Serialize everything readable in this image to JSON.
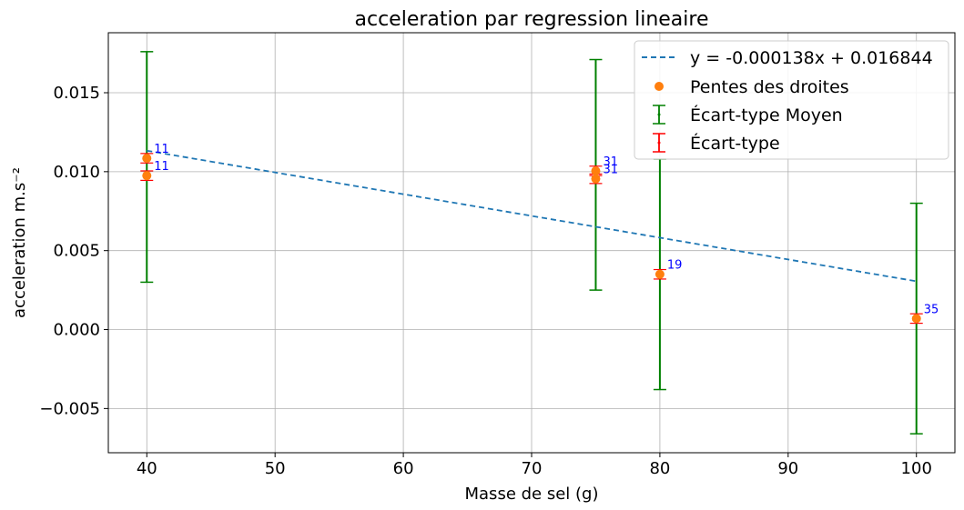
{
  "chart_data": {
    "type": "scatter",
    "title": "acceleration par regression lineaire",
    "xlabel": "Masse de sel (g)",
    "ylabel": "acceleration m.s⁻²",
    "xlim": [
      37,
      103
    ],
    "ylim": [
      -0.0078,
      0.0188
    ],
    "grid": true,
    "legend_position": "top-right",
    "x_ticks": [
      40,
      50,
      60,
      70,
      80,
      90,
      100
    ],
    "y_ticks": [
      -0.005,
      0.0,
      0.005,
      0.01,
      0.015
    ],
    "y_tick_labels": [
      "−0.005",
      "0.000",
      "0.005",
      "0.010",
      "0.015"
    ],
    "fit_line": {
      "label": "y = -0.000138x + 0.016844",
      "color": "#1f77b4",
      "x": [
        40,
        75,
        75,
        80,
        100
      ],
      "y": [
        0.01133,
        0.00651,
        0.00651,
        0.00582,
        0.00306
      ]
    },
    "points": {
      "label": "Pentes des droites",
      "color": "#ff7f0e",
      "data": [
        {
          "x": 40,
          "y": 0.01085,
          "err": 0.0003,
          "annotation": "11"
        },
        {
          "x": 40,
          "y": 0.00975,
          "err": 0.0003,
          "annotation": "11"
        },
        {
          "x": 75,
          "y": 0.01005,
          "err": 0.0003,
          "annotation": "31"
        },
        {
          "x": 75,
          "y": 0.00955,
          "err": 0.0003,
          "annotation": "31"
        },
        {
          "x": 80,
          "y": 0.0035,
          "err": 0.0003,
          "annotation": "19"
        },
        {
          "x": 100,
          "y": 0.0007,
          "err": 0.0003,
          "annotation": "35"
        }
      ]
    },
    "mean_errors": {
      "label": "Écart-type Moyen",
      "color": "#008000",
      "data": [
        {
          "x": 40,
          "y": 0.0103,
          "err": 0.0073
        },
        {
          "x": 75,
          "y": 0.0098,
          "err": 0.0073
        },
        {
          "x": 80,
          "y": 0.0035,
          "err": 0.0073
        },
        {
          "x": 100,
          "y": 0.0007,
          "err": 0.0073
        }
      ]
    },
    "std_label": "Écart-type",
    "std_color": "#ff0000"
  }
}
